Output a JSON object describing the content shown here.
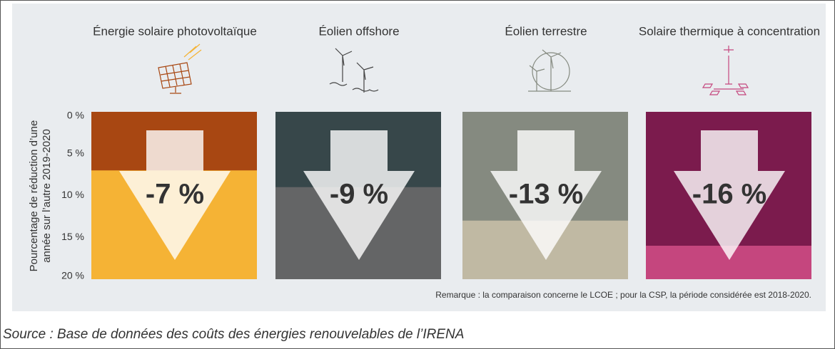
{
  "chart_data": {
    "type": "bar",
    "categories": [
      "Énergie solaire photovoltaïque",
      "Éolien offshore",
      "Éolien terrestre",
      "Solaire thermique à concentration"
    ],
    "values": [
      -7,
      -9,
      -13,
      -16
    ],
    "value_labels": [
      "-7 %",
      "-9 %",
      "-13 %",
      "-16 %"
    ],
    "colors": [
      "#a84712",
      "#37474a",
      "#858a80",
      "#7b1b4d"
    ],
    "background_colors": [
      "#f5b335",
      "#646566",
      "#c0b9a3",
      "#c5467e"
    ],
    "ylabel": [
      "Pourcentage de réduction d’une",
      "année sur l’autre 2019-2020"
    ],
    "ylim": [
      0,
      -20
    ],
    "yticks": [
      {
        "value": 0,
        "label": "0 %"
      },
      {
        "value": -5,
        "label": "5 %"
      },
      {
        "value": -10,
        "label": "10 %"
      },
      {
        "value": -15,
        "label": "15 %"
      },
      {
        "value": -20,
        "label": "20 %"
      }
    ],
    "note": "Remarque : la comparaison concerne le LCOE ; pour la CSP, la période considérée est 2018-2020.",
    "source": "Source : Base de données des coûts des énergies renouvelables de l’IRENA"
  }
}
